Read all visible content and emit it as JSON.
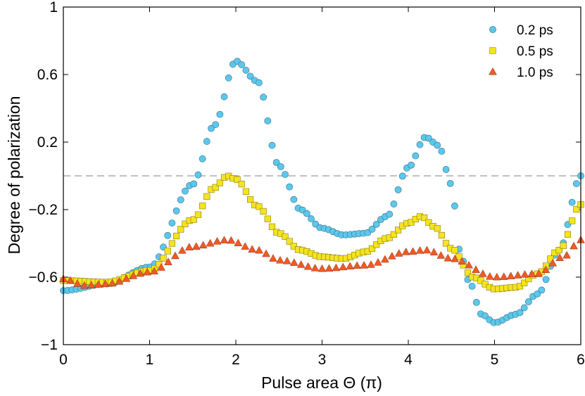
{
  "chart_data": {
    "type": "scatter",
    "title": "",
    "xlabel": "Pulse area Θ (π)",
    "ylabel": "Degree of polarization",
    "xlim": [
      0,
      6
    ],
    "ylim": [
      -1,
      1
    ],
    "xticks": [
      0,
      1,
      2,
      3,
      4,
      5,
      6
    ],
    "yticks": [
      -1,
      -0.6,
      -0.2,
      0.2,
      0.6,
      1
    ],
    "xtick_labels": [
      "0",
      "1",
      "2",
      "3",
      "4",
      "5",
      "6"
    ],
    "ytick_labels": [
      "−1",
      "−0.6",
      "−0.2",
      "0.2",
      "0.6",
      "1"
    ],
    "reference_line": {
      "y": 0,
      "style": "dashed",
      "color": "#9a9a9a"
    },
    "grid": false,
    "legend_position": "top-right",
    "series": [
      {
        "name": "0.2 ps",
        "marker": "circle",
        "color": "#5bc8ec",
        "points": [
          [
            0,
            -0.68
          ],
          [
            0.5,
            -0.64
          ],
          [
            1,
            -0.54
          ],
          [
            1.5,
            -0.05
          ],
          [
            1.75,
            0.3
          ],
          [
            2,
            0.68
          ],
          [
            2.25,
            0.56
          ],
          [
            2.5,
            0.06
          ],
          [
            2.75,
            -0.2
          ],
          [
            3,
            -0.31
          ],
          [
            3.25,
            -0.35
          ],
          [
            3.5,
            -0.34
          ],
          [
            3.75,
            -0.24
          ],
          [
            4,
            0.05
          ],
          [
            4.2,
            0.23
          ],
          [
            4.35,
            0.18
          ],
          [
            4.5,
            -0.05
          ],
          [
            4.6,
            -0.45
          ],
          [
            4.7,
            -0.62
          ],
          [
            4.85,
            -0.82
          ],
          [
            5,
            -0.87
          ],
          [
            5.25,
            -0.82
          ],
          [
            5.5,
            -0.7
          ],
          [
            5.75,
            -0.44
          ],
          [
            6,
            0
          ]
        ]
      },
      {
        "name": "0.5 ps",
        "marker": "square",
        "color": "#f5e41e",
        "points": [
          [
            0,
            -0.62
          ],
          [
            0.5,
            -0.63
          ],
          [
            1,
            -0.56
          ],
          [
            1.5,
            -0.26
          ],
          [
            1.75,
            -0.07
          ],
          [
            1.9,
            0
          ],
          [
            2,
            -0.02
          ],
          [
            2.25,
            -0.18
          ],
          [
            2.5,
            -0.34
          ],
          [
            2.75,
            -0.44
          ],
          [
            3,
            -0.48
          ],
          [
            3.25,
            -0.49
          ],
          [
            3.5,
            -0.45
          ],
          [
            3.75,
            -0.37
          ],
          [
            4,
            -0.28
          ],
          [
            4.15,
            -0.24
          ],
          [
            4.3,
            -0.3
          ],
          [
            4.5,
            -0.43
          ],
          [
            4.75,
            -0.6
          ],
          [
            5,
            -0.67
          ],
          [
            5.25,
            -0.66
          ],
          [
            5.5,
            -0.58
          ],
          [
            5.75,
            -0.44
          ],
          [
            6,
            -0.17
          ]
        ]
      },
      {
        "name": "1.0 ps",
        "marker": "triangle",
        "color": "#f05a24",
        "points": [
          [
            0,
            -0.61
          ],
          [
            0.25,
            -0.65
          ],
          [
            0.5,
            -0.64
          ],
          [
            1,
            -0.57
          ],
          [
            1.5,
            -0.42
          ],
          [
            1.9,
            -0.38
          ],
          [
            2.25,
            -0.44
          ],
          [
            2.5,
            -0.5
          ],
          [
            3,
            -0.55
          ],
          [
            3.5,
            -0.53
          ],
          [
            4,
            -0.45
          ],
          [
            4.2,
            -0.44
          ],
          [
            4.5,
            -0.49
          ],
          [
            5,
            -0.6
          ],
          [
            5.5,
            -0.58
          ],
          [
            5.8,
            -0.48
          ],
          [
            6,
            -0.38
          ]
        ]
      }
    ]
  }
}
